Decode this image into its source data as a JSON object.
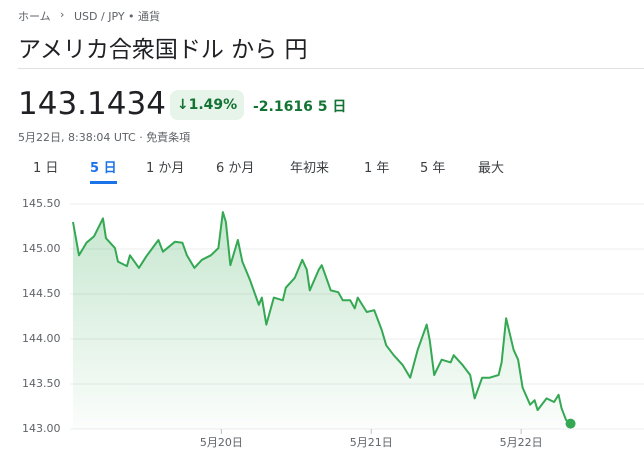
{
  "header": {
    "breadcrumb": [
      "ホーム",
      "USD / JPY • 通貨"
    ],
    "title": "アメリカ合衆国ドル から 円"
  },
  "quote": {
    "price": "143.1434",
    "change_pct": "1.49%",
    "change": "-2.1616",
    "period": "5 日",
    "timestamp": "5月22日, 8:38:04 UTC · ",
    "disclaimer": "免責条項"
  },
  "tabs": {
    "items": [
      "1 日",
      "5 日",
      "1 か月",
      "6 か月",
      "年初来",
      "1 年",
      "5 年",
      "最大"
    ],
    "selected": 1
  },
  "chart_data": {
    "type": "line",
    "color": "#34a853",
    "grid": true,
    "x": [
      19.01,
      19.05,
      19.1,
      19.15,
      19.21,
      19.23,
      19.29,
      19.31,
      19.37,
      19.39,
      19.45,
      19.5,
      19.58,
      19.61,
      19.69,
      19.74,
      19.77,
      19.82,
      19.87,
      19.93,
      19.98,
      20.01,
      20.03,
      20.06,
      20.11,
      20.14,
      20.19,
      20.25,
      20.27,
      20.3,
      20.35,
      20.41,
      20.43,
      20.49,
      20.54,
      20.57,
      20.59,
      20.65,
      20.67,
      20.73,
      20.78,
      20.81,
      20.86,
      20.89,
      20.91,
      20.97,
      21.02,
      21.07,
      21.1,
      21.15,
      21.21,
      21.26,
      21.31,
      21.37,
      21.39,
      21.42,
      21.47,
      21.53,
      21.55,
      21.61,
      21.66,
      21.69,
      21.74,
      21.79,
      21.85,
      21.87,
      21.9,
      21.95,
      21.98,
      22.01,
      22.06,
      22.09,
      22.11,
      22.17,
      22.22,
      22.25,
      22.27,
      22.3,
      22.33
    ],
    "values": [
      145.3,
      144.93,
      145.07,
      145.14,
      145.34,
      145.12,
      145.01,
      144.86,
      144.81,
      144.93,
      144.79,
      144.92,
      145.1,
      144.97,
      145.08,
      145.07,
      144.93,
      144.79,
      144.88,
      144.93,
      145.01,
      145.41,
      145.3,
      144.82,
      145.1,
      144.86,
      144.66,
      144.38,
      144.46,
      144.16,
      144.46,
      144.43,
      144.57,
      144.68,
      144.88,
      144.77,
      144.54,
      144.77,
      144.82,
      144.54,
      144.52,
      144.43,
      144.43,
      144.34,
      144.46,
      144.3,
      144.32,
      144.1,
      143.93,
      143.82,
      143.71,
      143.57,
      143.88,
      144.16,
      143.99,
      143.6,
      143.77,
      143.74,
      143.82,
      143.71,
      143.6,
      143.34,
      143.57,
      143.57,
      143.6,
      143.74,
      144.23,
      143.88,
      143.77,
      143.46,
      143.27,
      143.32,
      143.21,
      143.34,
      143.3,
      143.38,
      143.23,
      143.1,
      143.06
    ],
    "xlim": [
      18.99,
      22.82
    ],
    "xticks": [
      {
        "value": 20,
        "label": "5月20日"
      },
      {
        "value": 21,
        "label": "5月21日"
      },
      {
        "value": 22,
        "label": "5月22日"
      }
    ],
    "ylim": [
      143.0,
      145.5
    ],
    "yticks": [
      {
        "value": 145.5,
        "label": "145.50"
      },
      {
        "value": 145.0,
        "label": "145.00"
      },
      {
        "value": 144.5,
        "label": "144.50"
      },
      {
        "value": 144.0,
        "label": "144.00"
      },
      {
        "value": 143.5,
        "label": "143.50"
      },
      {
        "value": 143.0,
        "label": "143.00"
      }
    ]
  }
}
